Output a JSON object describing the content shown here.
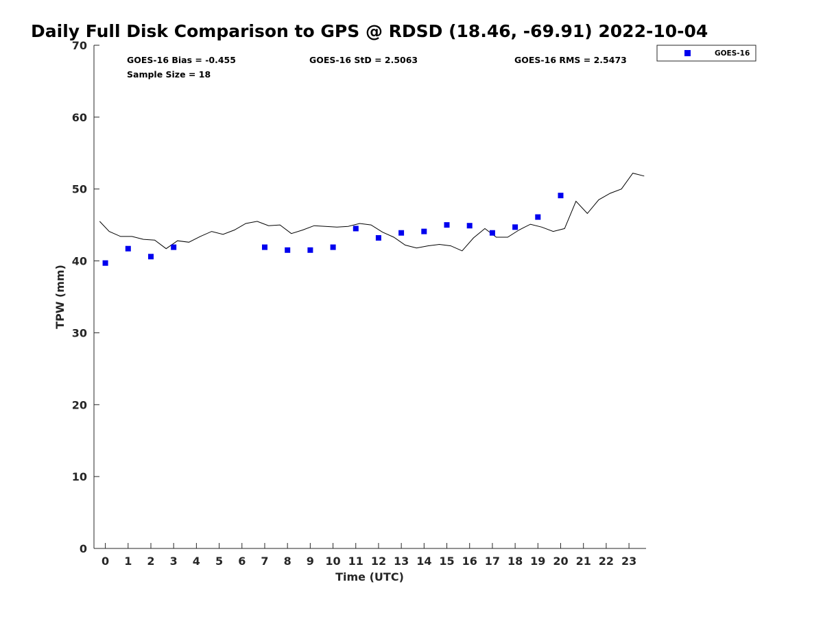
{
  "chart_data": {
    "type": "scatter",
    "title": "Daily Full Disk Comparison to GPS @ RDSD (18.46, -69.91) 2022-10-04",
    "xlabel": "Time (UTC)",
    "ylabel": "TPW (mm)",
    "xlim": [
      -0.5,
      23.75
    ],
    "ylim": [
      0,
      70
    ],
    "xticks": [
      0,
      1,
      2,
      3,
      4,
      5,
      6,
      7,
      8,
      9,
      10,
      11,
      12,
      13,
      14,
      15,
      16,
      17,
      18,
      19,
      20,
      21,
      22,
      23
    ],
    "yticks": [
      0,
      10,
      20,
      30,
      40,
      50,
      60,
      70
    ],
    "stats": {
      "bias": "GOES-16 Bias = -0.455",
      "std": "GOES-16 StD = 2.5063",
      "rms": "GOES-16 RMS = 2.5473",
      "sample": "Sample Size = 18"
    },
    "legend": {
      "position": "top-right-outside",
      "entries": [
        "GOES-16"
      ]
    },
    "colors": {
      "marker": "#0000ee",
      "line": "#000000"
    },
    "series": [
      {
        "name": "GOES-16",
        "kind": "marker",
        "x": [
          0,
          1,
          2,
          3,
          7,
          8,
          9,
          10,
          11,
          12,
          13,
          14,
          15,
          16,
          17,
          18,
          19,
          20
        ],
        "y": [
          39.7,
          41.7,
          40.6,
          41.9,
          41.9,
          41.5,
          41.5,
          41.9,
          44.5,
          43.2,
          43.9,
          44.1,
          45.0,
          44.9,
          43.9,
          44.7,
          46.1,
          49.1
        ]
      },
      {
        "kind": "line",
        "x": [
          -0.25,
          0.17,
          0.67,
          1.17,
          1.67,
          2.17,
          2.67,
          3.17,
          3.67,
          4.17,
          4.67,
          5.17,
          5.67,
          6.17,
          6.67,
          7.17,
          7.67,
          8.17,
          8.67,
          9.17,
          9.67,
          10.17,
          10.67,
          11.17,
          11.67,
          12.17,
          12.67,
          13.17,
          13.67,
          14.17,
          14.67,
          15.17,
          15.67,
          16.17,
          16.67,
          17.17,
          17.67,
          18.17,
          18.67,
          19.17,
          19.67,
          20.17,
          20.67,
          21.17,
          21.67,
          22.17,
          22.67,
          23.17,
          23.67
        ],
        "y": [
          45.5,
          44.1,
          43.4,
          43.4,
          43.0,
          42.9,
          41.7,
          42.8,
          42.6,
          43.4,
          44.1,
          43.7,
          44.3,
          45.2,
          45.5,
          44.9,
          45.0,
          43.8,
          44.3,
          44.9,
          44.8,
          44.7,
          44.8,
          45.2,
          45.0,
          44.0,
          43.3,
          42.2,
          41.8,
          42.1,
          42.3,
          42.1,
          41.4,
          43.2,
          44.5,
          43.3,
          43.3,
          44.3,
          45.1,
          44.7,
          44.1,
          44.5,
          48.3,
          46.6,
          48.5,
          49.4,
          50.0,
          52.2,
          51.8
        ]
      }
    ]
  }
}
